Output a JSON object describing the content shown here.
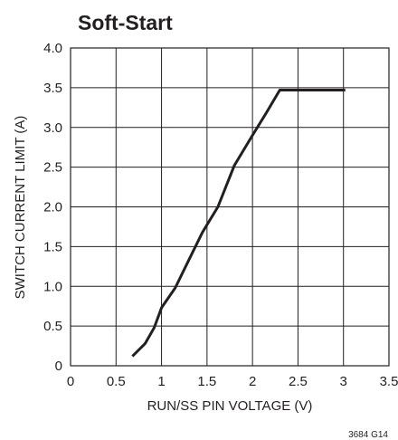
{
  "chart_data": {
    "type": "line",
    "title": "Soft-Start",
    "xlabel": "RUN/SS PIN VOLTAGE (V)",
    "ylabel": "SWITCH CURRENT LIMIT (A)",
    "xlim": [
      0,
      3.5
    ],
    "ylim": [
      0,
      4.0
    ],
    "xticks": [
      "0",
      "0.5",
      "1",
      "1.5",
      "2",
      "2.5",
      "3",
      "3.5"
    ],
    "yticks": [
      "0",
      "0.5",
      "1.0",
      "1.5",
      "2.0",
      "2.5",
      "3.0",
      "3.5",
      "4.0"
    ],
    "grid": true,
    "series": [
      {
        "x": [
          0.68,
          0.82,
          0.92,
          1.0,
          1.15,
          1.3,
          1.45,
          1.62,
          1.8,
          2.0,
          2.15,
          2.3,
          3.02
        ],
        "y": [
          0.12,
          0.28,
          0.48,
          0.73,
          0.98,
          1.33,
          1.68,
          2.0,
          2.52,
          2.9,
          3.18,
          3.47,
          3.47
        ],
        "color": "#231f20"
      }
    ],
    "footnote": "3684 G14"
  }
}
